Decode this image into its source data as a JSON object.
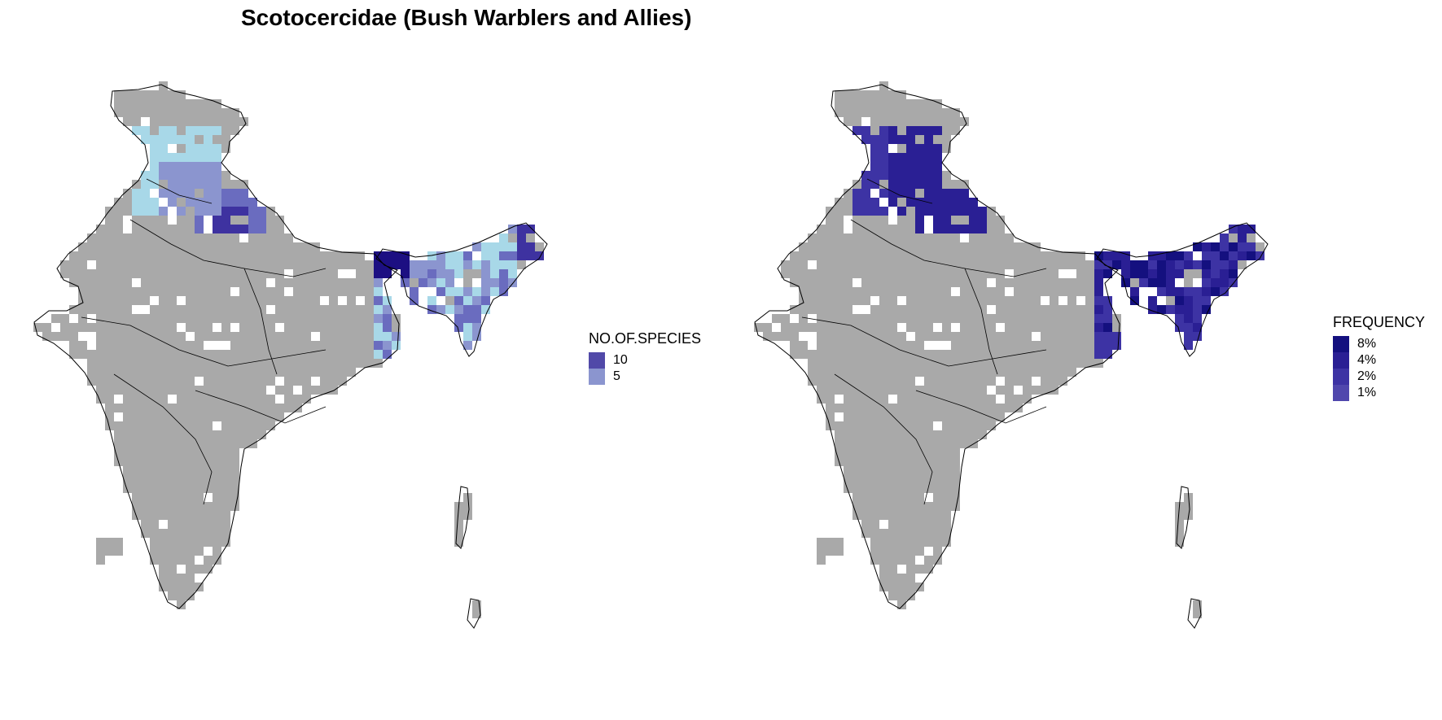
{
  "title": "Scotocercidae (Bush Warblers and Allies)",
  "panels": [
    {
      "id": "species",
      "legend_title": "NO.OF.SPECIES",
      "legend": [
        {
          "label": "10",
          "color": "#5149a8"
        },
        {
          "label": "5",
          "color": "#8b95cf"
        }
      ],
      "palette": [
        "#a8d8e8",
        "#8b95cf",
        "#6a6cbf",
        "#3e32a0",
        "#1c0f82"
      ]
    },
    {
      "id": "frequency",
      "legend_title": "FREQUENCY",
      "legend": [
        {
          "label": "8%",
          "color": "#14107f"
        },
        {
          "label": "4%",
          "color": "#2a1f94"
        },
        {
          "label": "2%",
          "color": "#3d33a4"
        },
        {
          "label": "1%",
          "color": "#5047ad"
        }
      ],
      "palette": [
        "#7a78c7",
        "#5047ad",
        "#3d33a4",
        "#2a1f94",
        "#14107f"
      ]
    }
  ],
  "background_color": "#a9a9a9",
  "border_color": "#000000"
}
